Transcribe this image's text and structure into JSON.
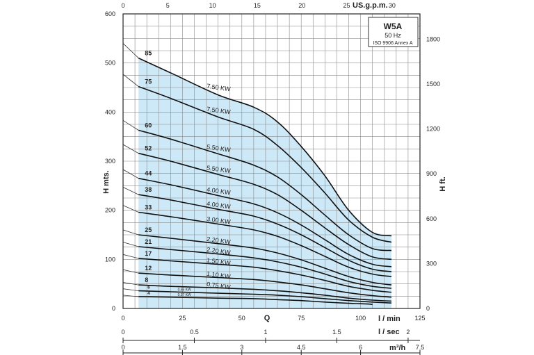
{
  "chart_data": {
    "type": "line",
    "model_box": {
      "title": "W5A",
      "frequency": "50 Hz",
      "standard": "ISO 9906 Annex A"
    },
    "y_left": {
      "label": "H mts.",
      "ticks": [
        0,
        100,
        200,
        300,
        400,
        500,
        600
      ],
      "range": [
        0,
        600
      ]
    },
    "y_right": {
      "label": "H ft.",
      "ticks": [
        0,
        300,
        600,
        900,
        1200,
        1500,
        1800
      ],
      "range": [
        0,
        1968.5
      ]
    },
    "x_top": {
      "label": "US.g.p.m.",
      "ticks": [
        0,
        5,
        10,
        15,
        20,
        25,
        30
      ],
      "last_tick": "30"
    },
    "x_main": {
      "label": "l / min",
      "ticks": [
        0,
        25,
        50,
        75,
        100,
        125
      ],
      "range": [
        0,
        125
      ]
    },
    "x_q_label": "Q",
    "x_lsec": {
      "label": "l / sec",
      "ticks": [
        "0",
        "0.5",
        "1",
        "1.5",
        "2"
      ],
      "values": [
        0,
        0.5,
        1,
        1.5,
        2
      ]
    },
    "x_m3h": {
      "label": "m³/h",
      "ticks": [
        "0",
        "1.5",
        "3",
        "4.5",
        "6",
        "7.5"
      ],
      "values": [
        0,
        1.5,
        3,
        4.5,
        6,
        7.5
      ]
    },
    "working_range_lmin": [
      6.5,
      113
    ],
    "grid": true,
    "series": [
      {
        "stage": "85",
        "kw": "7.50 KW",
        "points": [
          [
            0,
            540
          ],
          [
            6.5,
            510
          ],
          [
            20,
            480
          ],
          [
            40,
            435
          ],
          [
            55,
            410
          ],
          [
            65,
            380
          ],
          [
            75,
            330
          ],
          [
            85,
            270
          ],
          [
            95,
            200
          ],
          [
            105,
            155
          ],
          [
            113,
            148
          ]
        ]
      },
      {
        "stage": "75",
        "kw": "7.50 KW",
        "points": [
          [
            0,
            477
          ],
          [
            6.5,
            452
          ],
          [
            20,
            428
          ],
          [
            40,
            390
          ],
          [
            55,
            365
          ],
          [
            65,
            332
          ],
          [
            75,
            287
          ],
          [
            85,
            235
          ],
          [
            95,
            180
          ],
          [
            105,
            145
          ],
          [
            113,
            135
          ]
        ]
      },
      {
        "stage": "60",
        "kw": "5.50 KW",
        "points": [
          [
            0,
            383
          ],
          [
            6.5,
            363
          ],
          [
            20,
            345
          ],
          [
            40,
            315
          ],
          [
            55,
            292
          ],
          [
            65,
            268
          ],
          [
            75,
            232
          ],
          [
            85,
            190
          ],
          [
            95,
            150
          ],
          [
            105,
            122
          ],
          [
            113,
            118
          ]
        ]
      },
      {
        "stage": "52",
        "kw": "5.50 KW",
        "points": [
          [
            0,
            334
          ],
          [
            6.5,
            316
          ],
          [
            20,
            300
          ],
          [
            40,
            273
          ],
          [
            55,
            253
          ],
          [
            65,
            232
          ],
          [
            75,
            200
          ],
          [
            85,
            164
          ],
          [
            95,
            130
          ],
          [
            105,
            105
          ],
          [
            113,
            100
          ]
        ]
      },
      {
        "stage": "44",
        "kw": "4.00 KW",
        "points": [
          [
            0,
            283
          ],
          [
            6.5,
            265
          ],
          [
            20,
            252
          ],
          [
            40,
            230
          ],
          [
            55,
            213
          ],
          [
            65,
            195
          ],
          [
            75,
            170
          ],
          [
            85,
            140
          ],
          [
            95,
            110
          ],
          [
            105,
            90
          ],
          [
            113,
            85
          ]
        ]
      },
      {
        "stage": "38",
        "kw": "4.00 KW",
        "points": [
          [
            0,
            247
          ],
          [
            6.5,
            232
          ],
          [
            20,
            221
          ],
          [
            40,
            202
          ],
          [
            55,
            188
          ],
          [
            65,
            172
          ],
          [
            75,
            150
          ],
          [
            85,
            124
          ],
          [
            95,
            98
          ],
          [
            105,
            80
          ],
          [
            113,
            75
          ]
        ]
      },
      {
        "stage": "33",
        "kw": "3.00 KW",
        "points": [
          [
            0,
            210
          ],
          [
            6.5,
            196
          ],
          [
            20,
            187
          ],
          [
            40,
            172
          ],
          [
            55,
            160
          ],
          [
            65,
            147
          ],
          [
            75,
            128
          ],
          [
            85,
            106
          ],
          [
            95,
            84
          ],
          [
            105,
            70
          ],
          [
            113,
            65
          ]
        ]
      },
      {
        "stage": "25",
        "kw": "2.20 KW",
        "points": [
          [
            0,
            160
          ],
          [
            6.5,
            150
          ],
          [
            20,
            143
          ],
          [
            40,
            132
          ],
          [
            55,
            123
          ],
          [
            65,
            113
          ],
          [
            75,
            99
          ],
          [
            85,
            82
          ],
          [
            95,
            65
          ],
          [
            105,
            53
          ],
          [
            113,
            48
          ]
        ]
      },
      {
        "stage": "21",
        "kw": "2.20 KW",
        "points": [
          [
            0,
            135
          ],
          [
            6.5,
            126
          ],
          [
            20,
            120
          ],
          [
            40,
            111
          ],
          [
            55,
            103
          ],
          [
            65,
            95
          ],
          [
            75,
            84
          ],
          [
            85,
            70
          ],
          [
            95,
            55
          ],
          [
            105,
            45
          ],
          [
            113,
            41
          ]
        ]
      },
      {
        "stage": "17",
        "kw": "1.50 KW",
        "points": [
          [
            0,
            110
          ],
          [
            6.5,
            102
          ],
          [
            20,
            97
          ],
          [
            40,
            90
          ],
          [
            55,
            84
          ],
          [
            65,
            77
          ],
          [
            75,
            68
          ],
          [
            85,
            57
          ],
          [
            95,
            45
          ],
          [
            105,
            37
          ],
          [
            113,
            33
          ]
        ]
      },
      {
        "stage": "12",
        "kw": "1.10 KW",
        "points": [
          [
            0,
            79
          ],
          [
            6.5,
            72
          ],
          [
            20,
            68
          ],
          [
            40,
            63
          ],
          [
            55,
            59
          ],
          [
            65,
            54
          ],
          [
            75,
            48
          ],
          [
            85,
            40
          ],
          [
            95,
            32
          ],
          [
            105,
            26
          ],
          [
            113,
            23
          ]
        ]
      },
      {
        "stage": "8",
        "kw": "0.75 KW",
        "points": [
          [
            0,
            53
          ],
          [
            6.5,
            48
          ],
          [
            20,
            45
          ],
          [
            40,
            42
          ],
          [
            55,
            39
          ],
          [
            65,
            36
          ],
          [
            75,
            32
          ],
          [
            85,
            27
          ],
          [
            95,
            21
          ],
          [
            105,
            17
          ],
          [
            113,
            15
          ]
        ]
      },
      {
        "stage": "6",
        "kw": "0.55 KW",
        "points": [
          [
            0,
            40
          ],
          [
            6.5,
            36
          ],
          [
            20,
            34
          ],
          [
            40,
            31
          ],
          [
            55,
            29
          ],
          [
            65,
            27
          ],
          [
            75,
            24
          ],
          [
            85,
            20
          ],
          [
            95,
            16
          ],
          [
            105,
            13
          ],
          [
            113,
            11
          ]
        ]
      },
      {
        "stage": "4",
        "kw": "0.37 KW",
        "points": [
          [
            0,
            27
          ],
          [
            6.5,
            24
          ],
          [
            20,
            23
          ],
          [
            40,
            21
          ],
          [
            55,
            20
          ],
          [
            65,
            18
          ],
          [
            75,
            16
          ],
          [
            85,
            13
          ],
          [
            95,
            10.5
          ],
          [
            103,
            9
          ],
          [
            105,
            8
          ]
        ]
      }
    ]
  }
}
